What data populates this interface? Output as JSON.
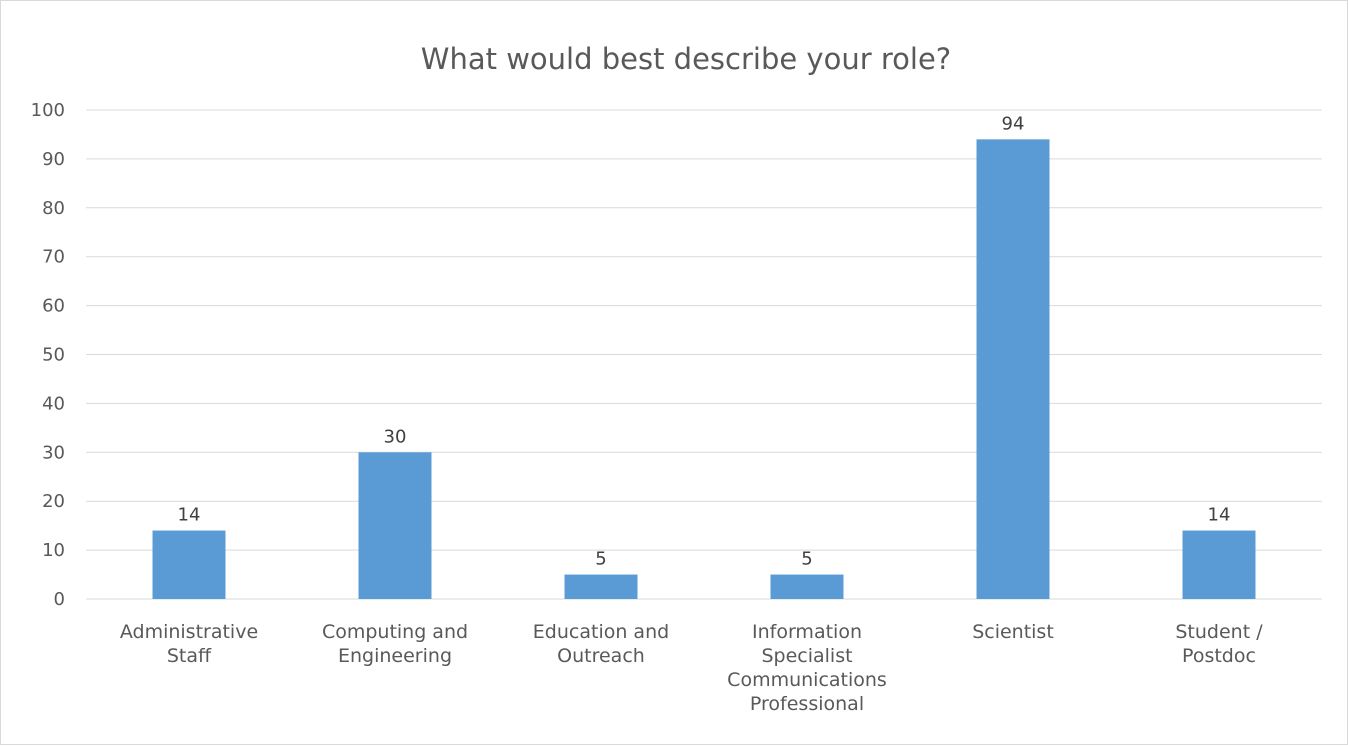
{
  "chart_data": {
    "type": "bar",
    "title": "What would best describe your role?",
    "categories": [
      [
        "Administrative",
        "Staff"
      ],
      [
        "Computing and",
        "Engineering"
      ],
      [
        "Education and",
        "Outreach"
      ],
      [
        "Information",
        "Specialist",
        "Communications",
        "Professional"
      ],
      [
        "Scientist"
      ],
      [
        "Student /",
        "Postdoc"
      ]
    ],
    "values": [
      14,
      30,
      5,
      5,
      94,
      14
    ],
    "ylim": [
      0,
      100
    ],
    "yticks": [
      0,
      10,
      20,
      30,
      40,
      50,
      60,
      70,
      80,
      90,
      100
    ],
    "grid": true,
    "legend": "none",
    "bar_color": "#5b9bd5"
  }
}
